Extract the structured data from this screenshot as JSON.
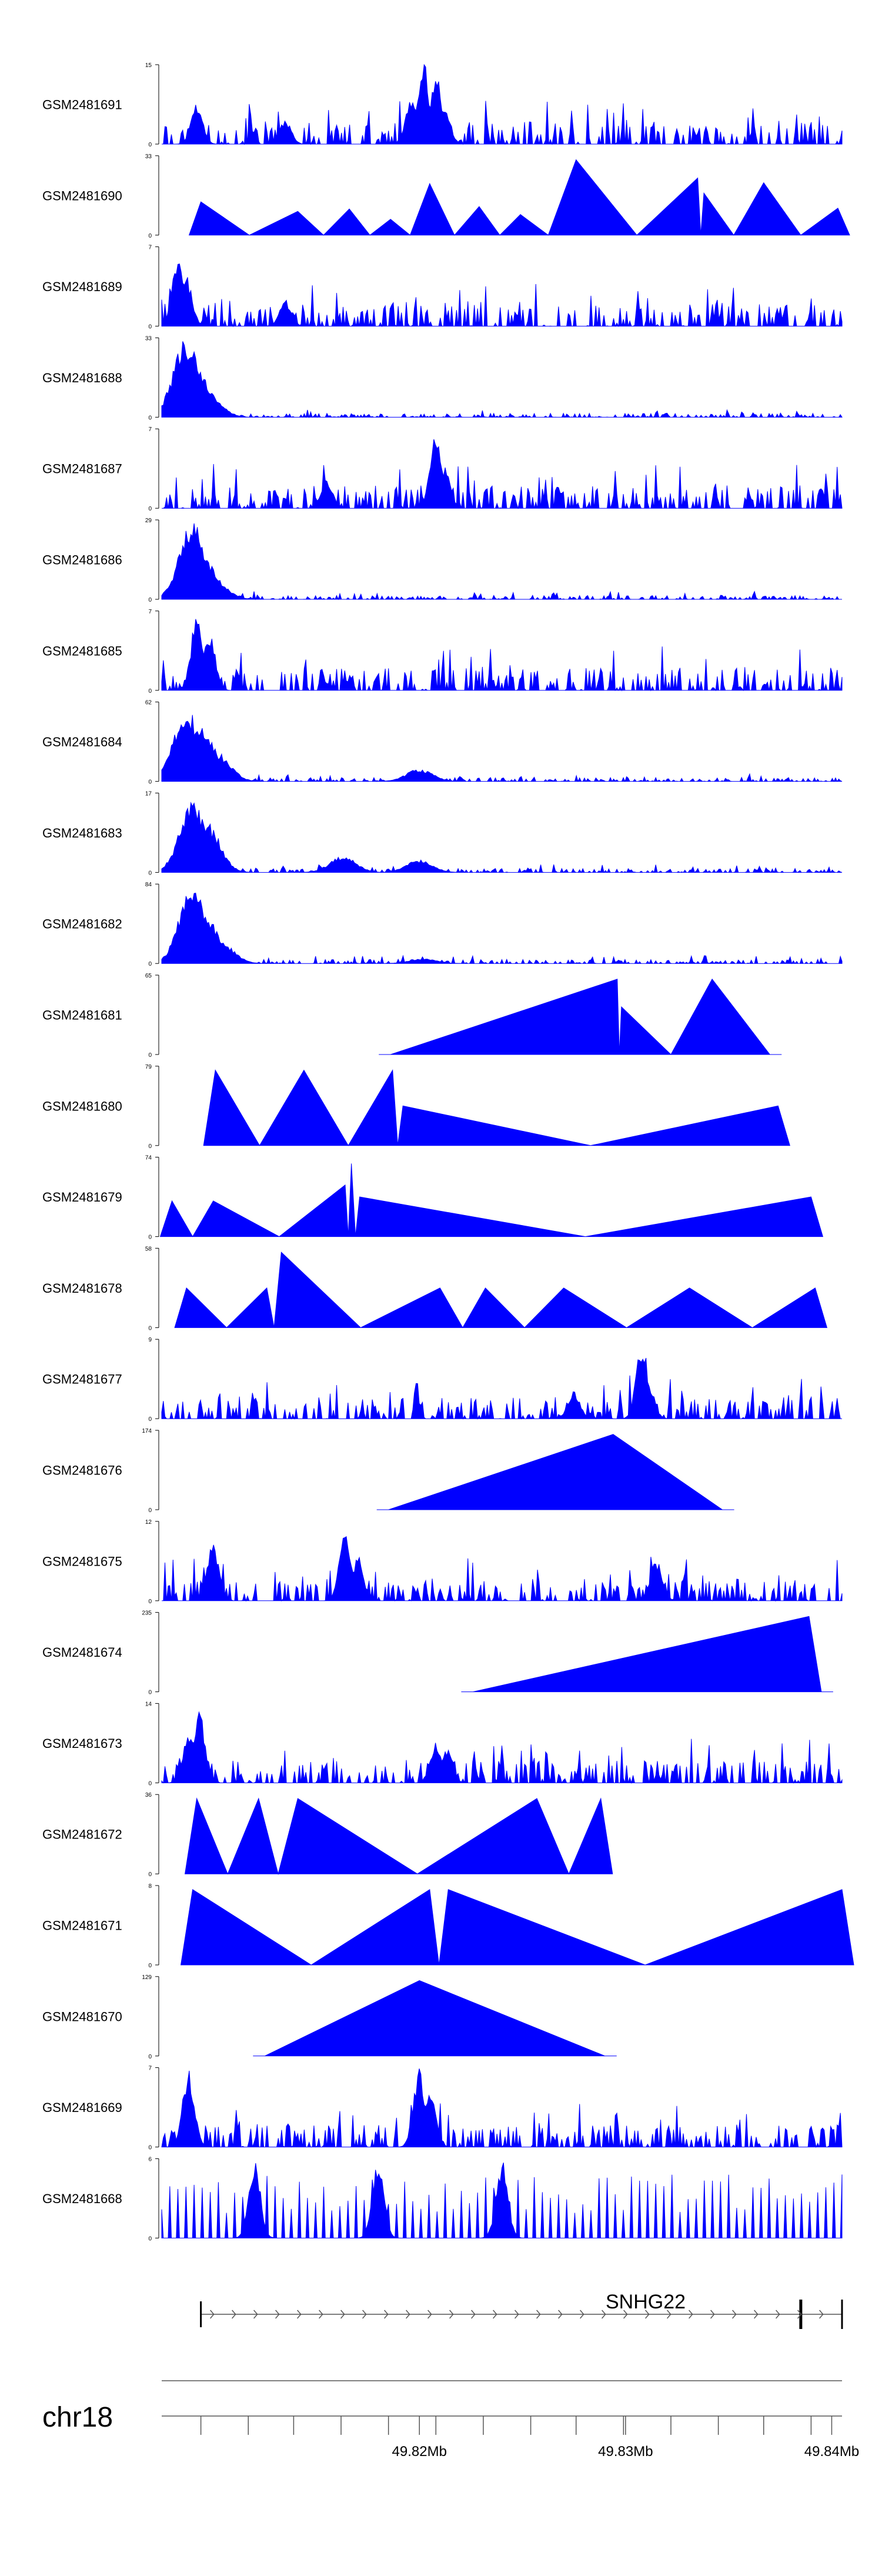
{
  "chart_data": {
    "type": "area",
    "title": "",
    "chromosome": "chr18",
    "x_range_mb": [
      49.8075,
      49.8405
    ],
    "axis_ticks_mb": [
      49.8094,
      49.8117,
      49.8139,
      49.8162,
      49.8185,
      49.8208,
      49.8231,
      49.8254,
      49.8276,
      49.8299,
      49.8322,
      49.8345,
      49.8367,
      49.839
    ],
    "axis_labels": [
      {
        "mb": 49.82,
        "text": "49.82Mb"
      },
      {
        "mb": 49.83,
        "text": "49.83Mb"
      },
      {
        "mb": 49.84,
        "text": "49.84Mb"
      }
    ],
    "gene": {
      "name": "SNHG22",
      "start_mb": 49.8094,
      "end_mb": 49.8405,
      "exon_mb": 49.8385,
      "strand": "+"
    },
    "tracks": [
      {
        "name": "GSM2481691",
        "ymax": 15,
        "ymin": 0,
        "style": "dense",
        "seed": 11,
        "peaks": [
          {
            "mb": 49.8202,
            "h": 1.0
          },
          {
            "mb": 49.8208,
            "h": 0.9
          },
          {
            "mb": 49.8196,
            "h": 0.55
          },
          {
            "mb": 49.8212,
            "h": 0.5
          },
          {
            "mb": 49.8092,
            "h": 0.5
          },
          {
            "mb": 49.8135,
            "h": 0.3
          }
        ]
      },
      {
        "name": "GSM2481690",
        "ymax": 33,
        "ymin": 0,
        "style": "tri",
        "seed": 12,
        "peaks": [
          {
            "mb": 49.8094,
            "h": 0.42
          },
          {
            "mb": 49.8141,
            "h": 0.3
          },
          {
            "mb": 49.8166,
            "h": 0.33
          },
          {
            "mb": 49.8186,
            "h": 0.2
          },
          {
            "mb": 49.8205,
            "h": 0.65
          },
          {
            "mb": 49.8229,
            "h": 0.36
          },
          {
            "mb": 49.8249,
            "h": 0.26
          },
          {
            "mb": 49.8276,
            "h": 0.95
          },
          {
            "mb": 49.8335,
            "h": 0.72
          },
          {
            "mb": 49.8338,
            "h": 0.53
          },
          {
            "mb": 49.8367,
            "h": 0.66
          },
          {
            "mb": 49.8403,
            "h": 0.34
          }
        ]
      },
      {
        "name": "GSM2481689",
        "ymax": 7,
        "ymin": 0,
        "style": "dense",
        "seed": 13,
        "peaks": [
          {
            "mb": 49.8083,
            "h": 0.85
          },
          {
            "mb": 49.8087,
            "h": 0.6
          },
          {
            "mb": 49.8135,
            "h": 0.3
          }
        ]
      },
      {
        "name": "GSM2481688",
        "ymax": 33,
        "ymin": 0,
        "style": "bump",
        "seed": 14,
        "peaks": [
          {
            "mb": 49.8087,
            "h": 0.95
          },
          {
            "mb": 49.8092,
            "h": 0.6
          },
          {
            "mb": 49.8097,
            "h": 0.3
          }
        ]
      },
      {
        "name": "GSM2481687",
        "ymax": 7,
        "ymin": 0,
        "style": "dense",
        "seed": 15,
        "peaks": [
          {
            "mb": 49.8208,
            "h": 0.95
          },
          {
            "mb": 49.8212,
            "h": 0.5
          },
          {
            "mb": 49.8155,
            "h": 0.35
          }
        ]
      },
      {
        "name": "GSM2481686",
        "ymax": 29,
        "ymin": 0,
        "style": "bump",
        "seed": 16,
        "peaks": [
          {
            "mb": 49.809,
            "h": 0.95
          },
          {
            "mb": 49.8095,
            "h": 0.55
          },
          {
            "mb": 49.81,
            "h": 0.25
          }
        ]
      },
      {
        "name": "GSM2481685",
        "ymax": 7,
        "ymin": 0,
        "style": "dense",
        "seed": 17,
        "peaks": [
          {
            "mb": 49.8092,
            "h": 0.9
          },
          {
            "mb": 49.8098,
            "h": 0.75
          }
        ]
      },
      {
        "name": "GSM2481684",
        "ymax": 62,
        "ymin": 0,
        "style": "bump",
        "seed": 18,
        "peaks": [
          {
            "mb": 49.8087,
            "h": 0.9
          },
          {
            "mb": 49.8095,
            "h": 0.65
          },
          {
            "mb": 49.8102,
            "h": 0.35
          },
          {
            "mb": 49.82,
            "h": 0.15
          }
        ]
      },
      {
        "name": "GSM2481683",
        "ymax": 17,
        "ymin": 0,
        "style": "bump",
        "seed": 19,
        "peaks": [
          {
            "mb": 49.809,
            "h": 0.85
          },
          {
            "mb": 49.8097,
            "h": 0.6
          },
          {
            "mb": 49.8163,
            "h": 0.2
          },
          {
            "mb": 49.82,
            "h": 0.15
          }
        ]
      },
      {
        "name": "GSM2481682",
        "ymax": 84,
        "ymin": 0,
        "style": "bump",
        "seed": 20,
        "peaks": [
          {
            "mb": 49.809,
            "h": 0.95
          },
          {
            "mb": 49.8097,
            "h": 0.55
          },
          {
            "mb": 49.8104,
            "h": 0.25
          },
          {
            "mb": 49.8202,
            "h": 0.06
          }
        ]
      },
      {
        "name": "GSM2481681",
        "ymax": 65,
        "ymin": 0,
        "style": "tri",
        "seed": 21,
        "peaks": [
          {
            "mb": 49.8186,
            "h": 0.0
          },
          {
            "mb": 49.8296,
            "h": 0.95
          },
          {
            "mb": 49.8298,
            "h": 0.6
          },
          {
            "mb": 49.8322,
            "h": 0.0
          },
          {
            "mb": 49.8342,
            "h": 0.95
          },
          {
            "mb": 49.837,
            "h": 0.0
          }
        ]
      },
      {
        "name": "GSM2481680",
        "ymax": 79,
        "ymin": 0,
        "style": "tri",
        "seed": 22,
        "peaks": [
          {
            "mb": 49.8101,
            "h": 0.95
          },
          {
            "mb": 49.8144,
            "h": 0.95
          },
          {
            "mb": 49.8187,
            "h": 0.95
          },
          {
            "mb": 49.8192,
            "h": 0.5
          },
          {
            "mb": 49.8374,
            "h": 0.5
          }
        ]
      },
      {
        "name": "GSM2481679",
        "ymax": 74,
        "ymin": 0,
        "style": "tri",
        "seed": 23,
        "peaks": [
          {
            "mb": 49.808,
            "h": 0.45
          },
          {
            "mb": 49.81,
            "h": 0.45
          },
          {
            "mb": 49.8164,
            "h": 0.65
          },
          {
            "mb": 49.8167,
            "h": 0.92
          },
          {
            "mb": 49.8171,
            "h": 0.5
          },
          {
            "mb": 49.839,
            "h": 0.5
          }
        ]
      },
      {
        "name": "GSM2481678",
        "ymax": 58,
        "ymin": 0,
        "style": "tri",
        "seed": 24,
        "peaks": [
          {
            "mb": 49.8087,
            "h": 0.5
          },
          {
            "mb": 49.8126,
            "h": 0.5
          },
          {
            "mb": 49.8133,
            "h": 0.95
          },
          {
            "mb": 49.821,
            "h": 0.5
          },
          {
            "mb": 49.8232,
            "h": 0.5
          },
          {
            "mb": 49.827,
            "h": 0.5
          },
          {
            "mb": 49.8331,
            "h": 0.5
          },
          {
            "mb": 49.8392,
            "h": 0.5
          }
        ]
      },
      {
        "name": "GSM2481677",
        "ymax": 9,
        "ymin": 0,
        "style": "dense",
        "seed": 25,
        "peaks": [
          {
            "mb": 49.8308,
            "h": 0.95
          },
          {
            "mb": 49.8311,
            "h": 0.45
          },
          {
            "mb": 49.8275,
            "h": 0.35
          }
        ]
      },
      {
        "name": "GSM2481676",
        "ymax": 174,
        "ymin": 0,
        "style": "tri",
        "seed": 26,
        "peaks": [
          {
            "mb": 49.8185,
            "h": 0.0
          },
          {
            "mb": 49.8294,
            "h": 0.95
          },
          {
            "mb": 49.8347,
            "h": 0.0
          }
        ]
      },
      {
        "name": "GSM2481675",
        "ymax": 12,
        "ymin": 0,
        "style": "dense",
        "seed": 27,
        "peaks": [
          {
            "mb": 49.81,
            "h": 0.7
          },
          {
            "mb": 49.8164,
            "h": 0.9
          },
          {
            "mb": 49.817,
            "h": 0.55
          },
          {
            "mb": 49.8315,
            "h": 0.5
          }
        ]
      },
      {
        "name": "GSM2481674",
        "ymax": 235,
        "ymin": 0,
        "style": "tri",
        "seed": 28,
        "peaks": [
          {
            "mb": 49.8226,
            "h": 0.0
          },
          {
            "mb": 49.8389,
            "h": 0.95
          },
          {
            "mb": 49.8395,
            "h": 0.0
          }
        ]
      },
      {
        "name": "GSM2481673",
        "ymax": 14,
        "ymin": 0,
        "style": "dense",
        "seed": 29,
        "peaks": [
          {
            "mb": 49.8093,
            "h": 0.92
          },
          {
            "mb": 49.8088,
            "h": 0.6
          },
          {
            "mb": 49.8208,
            "h": 0.5
          },
          {
            "mb": 49.8213,
            "h": 0.45
          }
        ]
      },
      {
        "name": "GSM2481672",
        "ymax": 36,
        "ymin": 0,
        "style": "tri",
        "seed": 30,
        "peaks": [
          {
            "mb": 49.8092,
            "h": 0.95
          },
          {
            "mb": 49.8122,
            "h": 0.95
          },
          {
            "mb": 49.8141,
            "h": 0.95
          },
          {
            "mb": 49.8257,
            "h": 0.95
          },
          {
            "mb": 49.8288,
            "h": 0.95
          }
        ]
      },
      {
        "name": "GSM2481671",
        "ymax": 8,
        "ymin": 0,
        "style": "tri",
        "seed": 31,
        "peaks": [
          {
            "mb": 49.809,
            "h": 0.95
          },
          {
            "mb": 49.8205,
            "h": 0.95
          },
          {
            "mb": 49.8214,
            "h": 0.95
          },
          {
            "mb": 49.8405,
            "h": 0.95
          }
        ]
      },
      {
        "name": "GSM2481670",
        "ymax": 129,
        "ymin": 0,
        "style": "tri",
        "seed": 32,
        "peaks": [
          {
            "mb": 49.8125,
            "h": 0.0
          },
          {
            "mb": 49.82,
            "h": 0.95
          },
          {
            "mb": 49.829,
            "h": 0.0
          }
        ]
      },
      {
        "name": "GSM2481669",
        "ymax": 7,
        "ymin": 0,
        "style": "dense",
        "seed": 33,
        "peaks": [
          {
            "mb": 49.8088,
            "h": 0.95
          },
          {
            "mb": 49.82,
            "h": 0.95
          },
          {
            "mb": 49.8205,
            "h": 0.75
          }
        ]
      },
      {
        "name": "GSM2481668",
        "ymax": 6,
        "ymin": 0,
        "style": "spikes",
        "seed": 34,
        "peaks": [
          {
            "mb": 49.812,
            "h": 0.95
          },
          {
            "mb": 49.818,
            "h": 0.95
          },
          {
            "mb": 49.824,
            "h": 0.95
          }
        ]
      }
    ]
  }
}
